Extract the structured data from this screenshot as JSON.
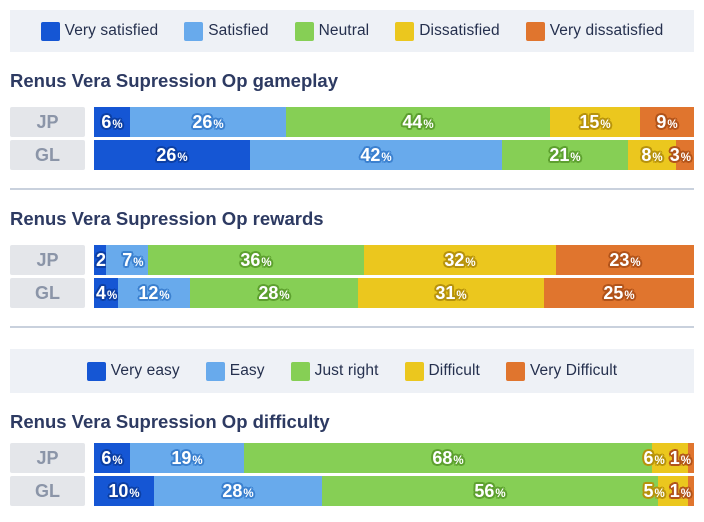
{
  "colors": {
    "scale": [
      "#1556d4",
      "#68aaec",
      "#86cf55",
      "#ebc71e",
      "#e0752e"
    ],
    "label_outline": [
      "#0c3fa4",
      "#3b80cf",
      "#5da02f",
      "#b6920c",
      "#b1531a"
    ],
    "legend_bg": "#eef1f6",
    "row_label_bg": "#e4e6ea",
    "row_label_text": "#8b95a8",
    "title_text": "#2d3a62",
    "legend_text": "#25304e",
    "divider": "#c9d1dd"
  },
  "legends": [
    {
      "id": "satisfaction",
      "labels": [
        "Very satisfied",
        "Satisfied",
        "Neutral",
        "Dissatisfied",
        "Very dissatisfied"
      ]
    },
    {
      "id": "difficulty",
      "labels": [
        "Very easy",
        "Easy",
        "Just right",
        "Difficult",
        "Very Difficult"
      ]
    }
  ],
  "chart_data": [
    {
      "type": "bar",
      "subtype": "horizontal-stacked-percent",
      "title": "Renus Vera Supression Op gameplay",
      "unit": "%",
      "xlim": [
        0,
        100
      ],
      "legend_position": "top",
      "categories": [
        "Very satisfied",
        "Satisfied",
        "Neutral",
        "Dissatisfied",
        "Very dissatisfied"
      ],
      "series": [
        {
          "name": "JP",
          "values": [
            6,
            26,
            44,
            15,
            9
          ]
        },
        {
          "name": "GL",
          "values": [
            26,
            42,
            21,
            8,
            3
          ]
        }
      ]
    },
    {
      "type": "bar",
      "subtype": "horizontal-stacked-percent",
      "title": "Renus Vera Supression Op rewards",
      "unit": "%",
      "xlim": [
        0,
        100
      ],
      "legend_position": "top",
      "categories": [
        "Very satisfied",
        "Satisfied",
        "Neutral",
        "Dissatisfied",
        "Very dissatisfied"
      ],
      "series": [
        {
          "name": "JP",
          "values": [
            2,
            7,
            36,
            32,
            23
          ]
        },
        {
          "name": "GL",
          "values": [
            4,
            12,
            28,
            31,
            25
          ]
        }
      ]
    },
    {
      "type": "bar",
      "subtype": "horizontal-stacked-percent",
      "title": "Renus Vera Supression Op difficulty",
      "unit": "%",
      "xlim": [
        0,
        100
      ],
      "legend_position": "top",
      "categories": [
        "Very easy",
        "Easy",
        "Just right",
        "Difficult",
        "Very Difficult"
      ],
      "series": [
        {
          "name": "JP",
          "values": [
            6,
            19,
            68,
            6,
            1
          ]
        },
        {
          "name": "GL",
          "values": [
            10,
            28,
            56,
            5,
            1
          ]
        }
      ]
    }
  ]
}
